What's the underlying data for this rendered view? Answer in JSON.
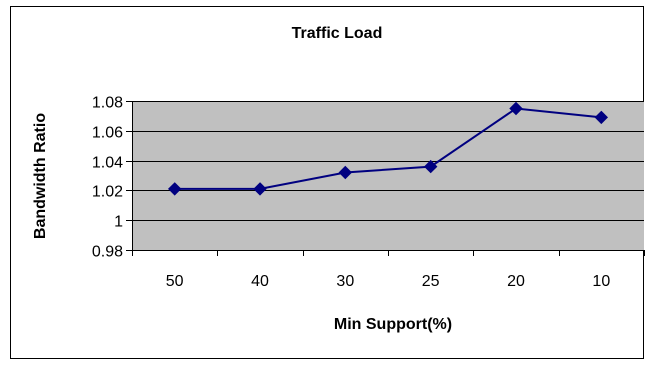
{
  "chart_data": {
    "type": "line",
    "title": "Traffic Load",
    "xlabel": "Min Support(%)",
    "ylabel": "Bandwidth Ratio",
    "categories": [
      "50",
      "40",
      "30",
      "25",
      "20",
      "10"
    ],
    "series": [
      {
        "values": [
          1.021,
          1.021,
          1.032,
          1.036,
          1.075,
          1.069
        ]
      }
    ],
    "ylim": [
      0.98,
      1.08
    ],
    "yticks": [
      "0.98",
      "1",
      "1.02",
      "1.04",
      "1.06",
      "1.08"
    ],
    "grid": true,
    "legend": "none",
    "colors": {
      "plot_background": "#c0c0c0",
      "line": "#000080",
      "marker": "#000080",
      "gridline": "#000000"
    }
  }
}
